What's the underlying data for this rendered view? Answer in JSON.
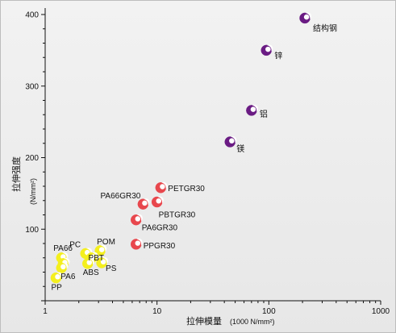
{
  "chart_data": {
    "type": "scatter",
    "xscale": "log",
    "xlim": [
      1,
      1000
    ],
    "ylim": [
      0,
      400
    ],
    "x_ticks": [
      "1",
      "10",
      "100",
      "1000"
    ],
    "y_ticks": [
      "100",
      "200",
      "300",
      "400"
    ],
    "xlabel": "拉伸模量",
    "xunit": "(1000 N/mm²)",
    "ylabel": "拉伸强度",
    "yunit": "(N/mm²)",
    "grid": false,
    "groups": [
      {
        "color": "#6a1b83",
        "points": [
          {
            "label": "结构钢",
            "x": 210,
            "y": 395
          },
          {
            "label": "锌",
            "x": 95,
            "y": 350
          },
          {
            "label": "铝",
            "x": 70,
            "y": 266
          },
          {
            "label": "镁",
            "x": 45,
            "y": 222
          }
        ]
      },
      {
        "color": "#e8474d",
        "points": [
          {
            "label": "PETGR30",
            "x": 10.8,
            "y": 158
          },
          {
            "label": "PA66GR30",
            "x": 7.5,
            "y": 135
          },
          {
            "label": "PBTGR30",
            "x": 10.0,
            "y": 138
          },
          {
            "label": "PA6GR30",
            "x": 6.5,
            "y": 113
          },
          {
            "label": "PPGR30",
            "x": 6.5,
            "y": 79
          }
        ]
      },
      {
        "color": "#f4ef1e",
        "points": [
          {
            "label": "POM",
            "x": 3.1,
            "y": 70
          },
          {
            "label": "PC",
            "x": 2.3,
            "y": 66
          },
          {
            "label": "PA66",
            "x": 1.4,
            "y": 60
          },
          {
            "label": "PBT",
            "x": 2.6,
            "y": 60
          },
          {
            "label": "",
            "x": 1.45,
            "y": 52
          },
          {
            "label": "ABS",
            "x": 2.4,
            "y": 52
          },
          {
            "label": "PS",
            "x": 3.2,
            "y": 53
          },
          {
            "label": "PA6",
            "x": 1.4,
            "y": 46
          },
          {
            "label": "PP",
            "x": 1.25,
            "y": 32
          }
        ]
      }
    ]
  }
}
